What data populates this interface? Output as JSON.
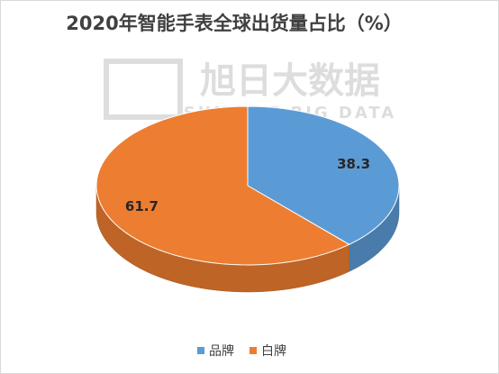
{
  "chart_data": {
    "type": "pie3d",
    "title": "2020年智能手表全球出货量占比（%）",
    "watermark": [
      "旭日大数据",
      "SUNRISE BIG DATA"
    ],
    "categories": [
      "品牌",
      "白牌"
    ],
    "values": [
      38.3,
      61.7
    ],
    "colors": [
      "#5b9bd5",
      "#ed7d31"
    ],
    "legend": "bottom"
  }
}
